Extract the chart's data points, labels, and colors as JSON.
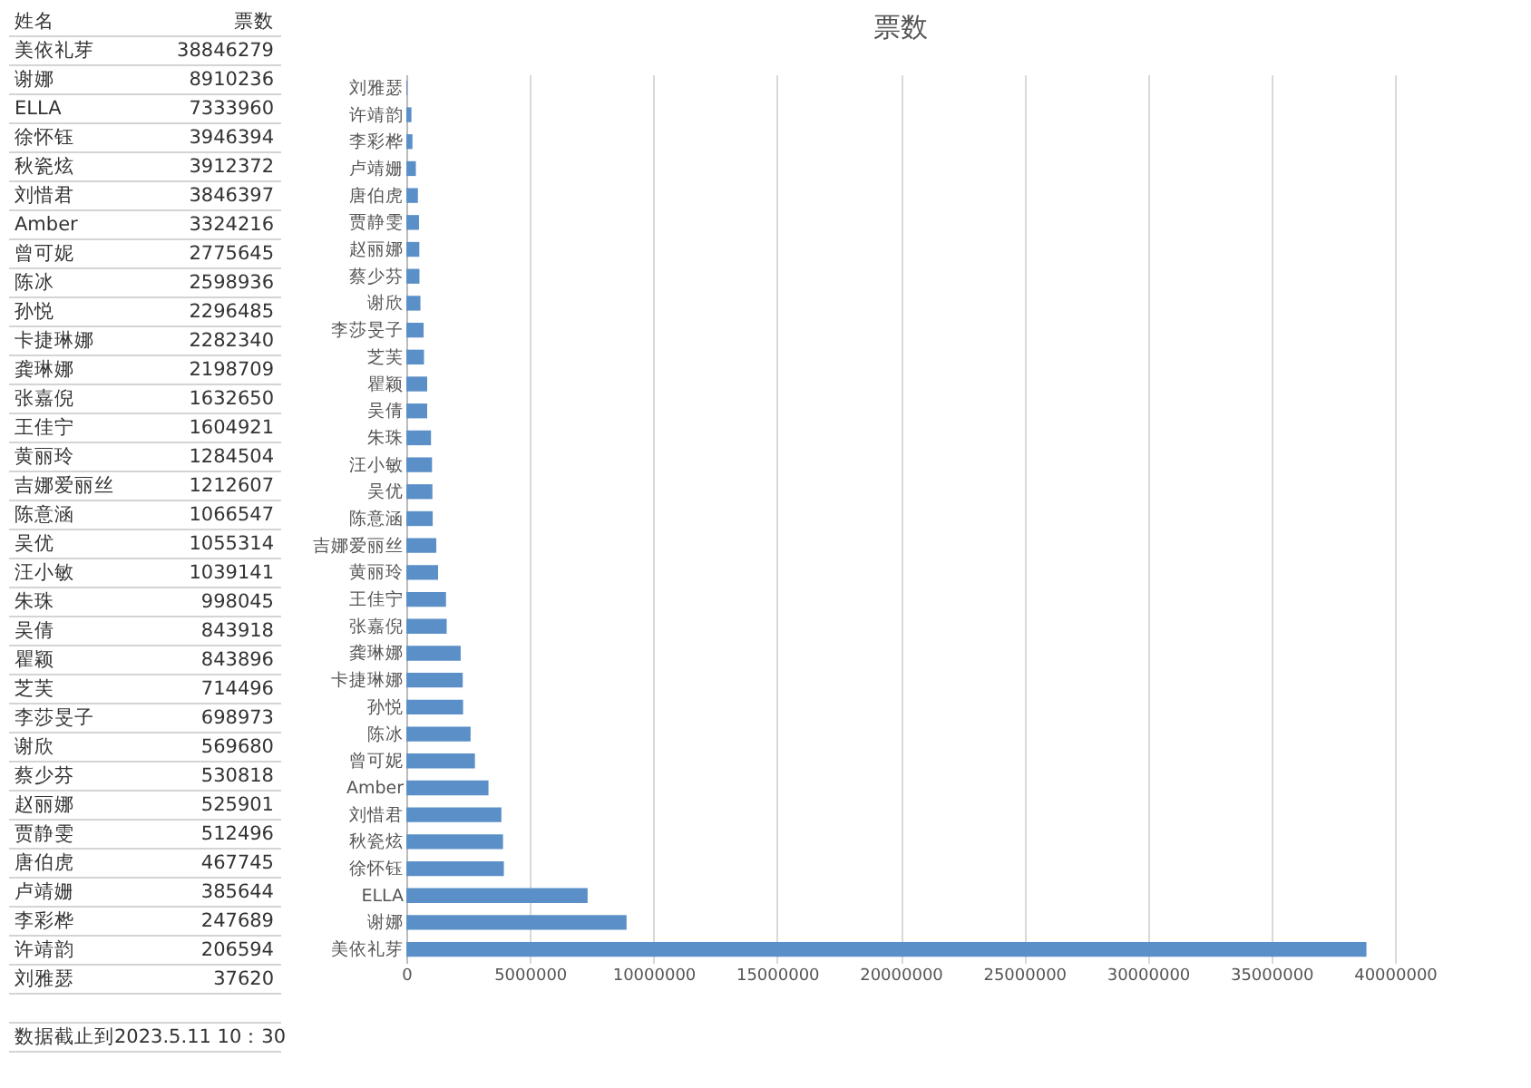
{
  "chart_data": [
    {
      "type": "other",
      "annotations": [
        "姓名",
        "票数",
        "数据截止到2023.5.11 10：30"
      ],
      "data_labels": true,
      "categories": [
        "美依礼芽",
        "谢娜",
        "ELLA",
        "徐怀钰",
        "秋瓷炫",
        "刘惜君",
        "Amber",
        "曾可妮",
        "陈冰",
        "孙悦",
        "卡捷琳娜",
        "龚琳娜",
        "张嘉倪",
        "王佳宁",
        "黄丽玲",
        "吉娜爱丽丝",
        "陈意涵",
        "吴优",
        "汪小敏",
        "朱珠",
        "吴倩",
        "瞿颖",
        "芝芙",
        "李莎旻子",
        "谢欣",
        "蔡少芬",
        "赵丽娜",
        "贾静雯",
        "唐伯虎",
        "卢靖姗",
        "李彩桦",
        "许靖韵",
        "刘雅瑟"
      ],
      "values": [
        38846279,
        8910236,
        7333960,
        3946394,
        3912372,
        3846397,
        3324216,
        2775645,
        2598936,
        2296485,
        2282340,
        2198709,
        1632650,
        1604921,
        1284504,
        1212607,
        1066547,
        1055314,
        1039141,
        998045,
        843918,
        843896,
        714496,
        698973,
        569680,
        530818,
        525901,
        512496,
        467745,
        385644,
        247689,
        206594,
        37620
      ]
    },
    {
      "type": "bar",
      "title": "票数",
      "orientation": "horizontal",
      "categories": [
        "刘雅瑟",
        "许靖韵",
        "李彩桦",
        "卢靖姗",
        "唐伯虎",
        "贾静雯",
        "赵丽娜",
        "蔡少芬",
        "谢欣",
        "李莎旻子",
        "芝芙",
        "瞿颖",
        "吴倩",
        "朱珠",
        "汪小敏",
        "吴优",
        "陈意涵",
        "吉娜爱丽丝",
        "黄丽玲",
        "王佳宁",
        "张嘉倪",
        "龚琳娜",
        "卡捷琳娜",
        "孙悦",
        "陈冰",
        "曾可妮",
        "Amber",
        "刘惜君",
        "秋瓷炫",
        "徐怀钰",
        "ELLA",
        "谢娜",
        "美依礼芽"
      ],
      "values": [
        37620,
        206594,
        247689,
        385644,
        467745,
        512496,
        525901,
        530818,
        569680,
        698973,
        714496,
        843896,
        843918,
        998045,
        1039141,
        1055314,
        1066547,
        1212607,
        1284504,
        1604921,
        1632650,
        2198709,
        2282340,
        2296485,
        2598936,
        2775645,
        3324216,
        3846397,
        3912372,
        3946394,
        7333960,
        8910236,
        38846279
      ],
      "color": "#5b8fc7",
      "xlim": [
        0,
        40000000
      ],
      "xticks": [
        0,
        5000000,
        10000000,
        15000000,
        20000000,
        25000000,
        30000000,
        35000000,
        40000000
      ],
      "grid": "x"
    }
  ]
}
